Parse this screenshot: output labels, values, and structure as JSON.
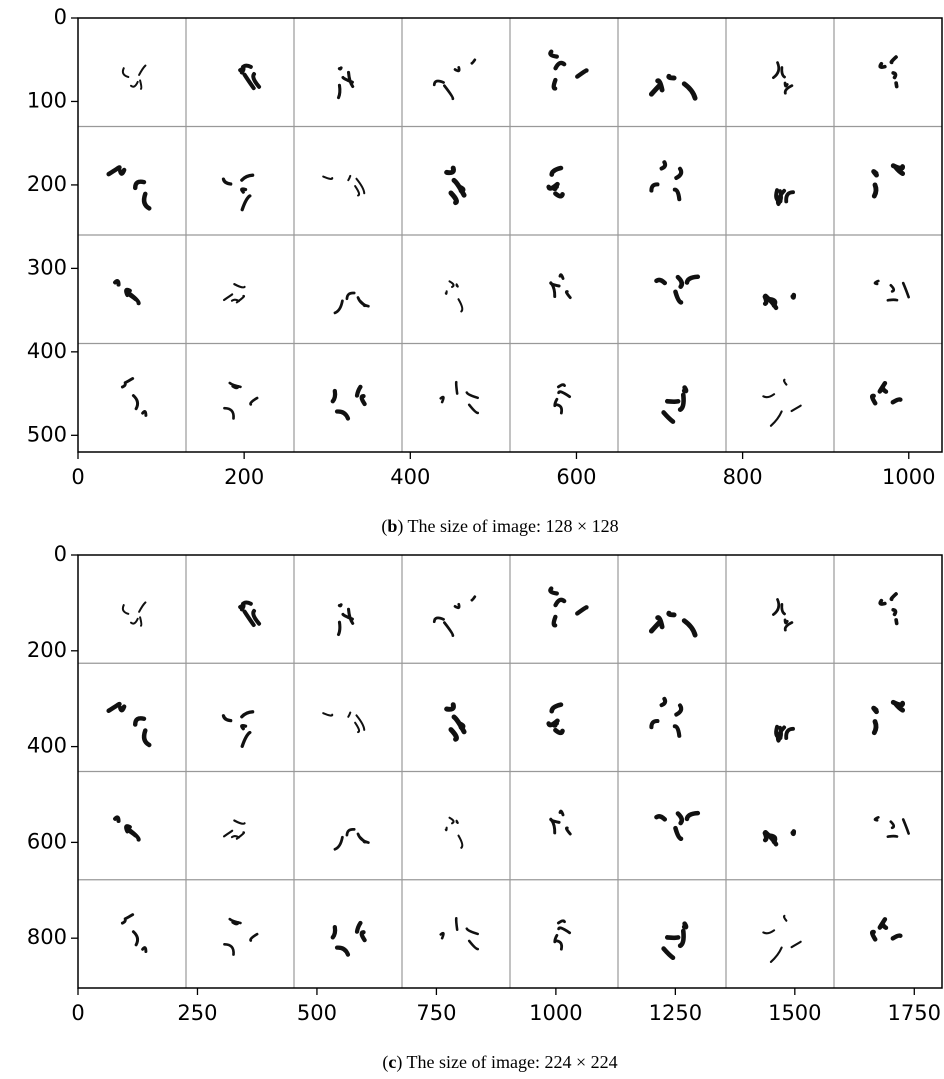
{
  "chart_data": [
    {
      "type": "image",
      "xlim": [
        0,
        1040
      ],
      "ylim": [
        520,
        0
      ],
      "xticks": [
        0,
        200,
        400,
        600,
        800,
        1000
      ],
      "yticks": [
        0,
        100,
        200,
        300,
        400,
        500
      ],
      "caption": [
        "(",
        "b",
        ") The size of image: 128 × 128"
      ]
    },
    {
      "type": "image",
      "xlim": [
        0,
        1808
      ],
      "ylim": [
        904,
        0
      ],
      "xticks": [
        0,
        250,
        500,
        750,
        1000,
        1250,
        1500,
        1750
      ],
      "yticks": [
        0,
        200,
        400,
        600,
        800
      ],
      "caption": [
        "(",
        "c",
        ") The size of image: 224 × 224"
      ]
    }
  ]
}
